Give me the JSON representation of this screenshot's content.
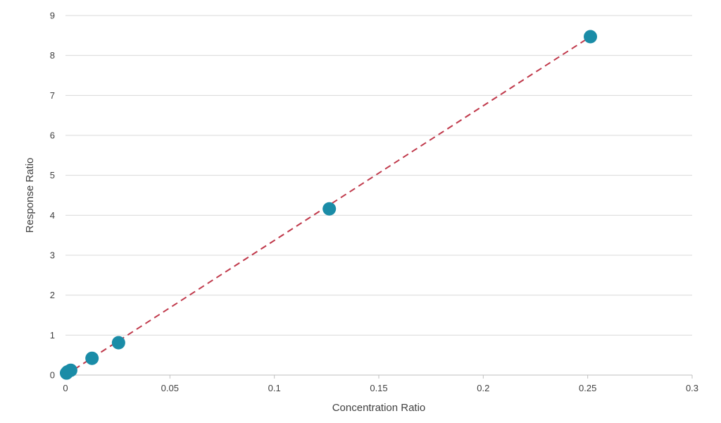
{
  "chart_data": {
    "type": "scatter",
    "title": "",
    "xlabel": "Concentration Ratio",
    "ylabel": "Response Ratio",
    "xlim": [
      0,
      0.3
    ],
    "ylim": [
      0,
      9
    ],
    "x_ticks": [
      "0",
      "0.05",
      "0.1",
      "0.15",
      "0.2",
      "0.25",
      "0.3"
    ],
    "y_ticks": [
      "0",
      "1",
      "2",
      "3",
      "4",
      "5",
      "6",
      "7",
      "8",
      "9"
    ],
    "grid": "horizontal",
    "legend": "none",
    "series": [
      {
        "points": [
          {
            "x": 0.0005,
            "y": 0.05
          },
          {
            "x": 0.001,
            "y": 0.08
          },
          {
            "x": 0.0025,
            "y": 0.12
          },
          {
            "x": 0.0127,
            "y": 0.42
          },
          {
            "x": 0.0254,
            "y": 0.81
          },
          {
            "x": 0.1263,
            "y": 4.16
          },
          {
            "x": 0.2513,
            "y": 8.47
          }
        ],
        "color": "#1a8ca7"
      }
    ],
    "trendline": {
      "style": "dashed",
      "color": "#c0394b",
      "from": {
        "x": 0.0,
        "y": 0.0
      },
      "to": {
        "x": 0.2513,
        "y": 8.47
      }
    }
  }
}
